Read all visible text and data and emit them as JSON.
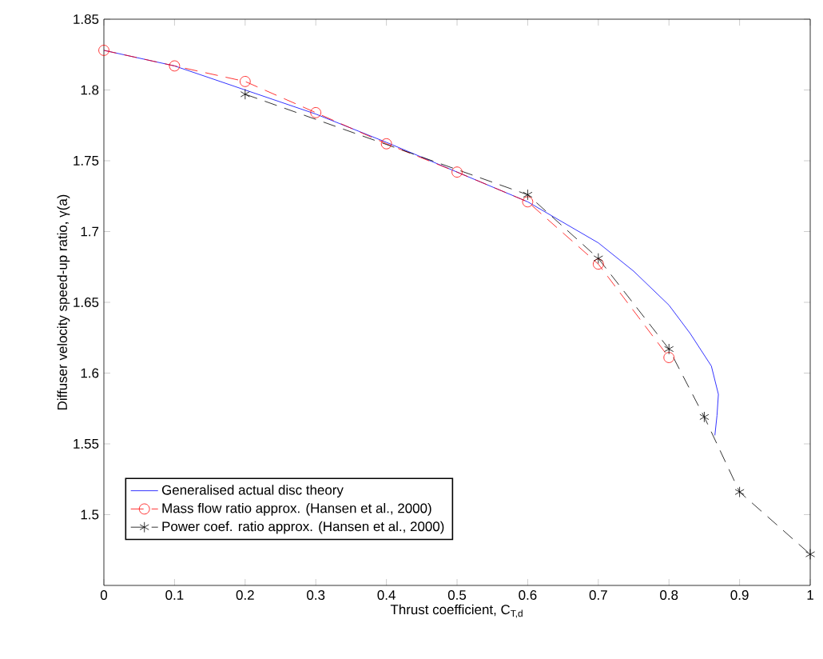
{
  "chart_data": {
    "type": "line",
    "xlabel": "Thrust coefficient, C$_{T,d}$",
    "ylabel": "Diffuser velocity speed-up ratio, γ(a)",
    "xlim": [
      0,
      1
    ],
    "ylim": [
      1.45,
      1.85
    ],
    "xticks": [
      0,
      0.1,
      0.2,
      0.3,
      0.4,
      0.5,
      0.6,
      0.7,
      0.8,
      0.9,
      1
    ],
    "yticks": [
      1.5,
      1.55,
      1.6,
      1.65,
      1.7,
      1.75,
      1.8,
      1.85
    ],
    "grid": false,
    "legend": "bottom left",
    "series": [
      {
        "name": "Generalised actual disc theory",
        "color": "#0000ff",
        "marker": "none",
        "line_style": "solid",
        "x": [
          0,
          0.1,
          0.2,
          0.3,
          0.4,
          0.5,
          0.6,
          0.7,
          0.75,
          0.8,
          0.83,
          0.86,
          0.87,
          0.868,
          0.865
        ],
        "values": [
          1.828,
          1.817,
          1.8,
          1.783,
          1.763,
          1.742,
          1.721,
          1.692,
          1.672,
          1.648,
          1.628,
          1.605,
          1.585,
          1.57,
          1.556
        ]
      },
      {
        "name": "Mass flow ratio approx. (Hansen et al., 2000)",
        "color": "#ff0000",
        "marker": "circle",
        "line_style": "dashed",
        "x": [
          0,
          0.1,
          0.2,
          0.3,
          0.4,
          0.5,
          0.6,
          0.7,
          0.8
        ],
        "values": [
          1.828,
          1.817,
          1.806,
          1.784,
          1.762,
          1.742,
          1.721,
          1.677,
          1.611
        ]
      },
      {
        "name": "Power coef. ratio approx.  (Hansen et al., 2000)",
        "color": "#000000",
        "marker": "cross",
        "line_style": "dashed",
        "x": [
          0.2,
          0.6,
          0.7,
          0.8,
          0.85,
          0.9,
          1
        ],
        "values": [
          1.797,
          1.726,
          1.681,
          1.617,
          1.569,
          1.516,
          1.472
        ]
      }
    ]
  }
}
